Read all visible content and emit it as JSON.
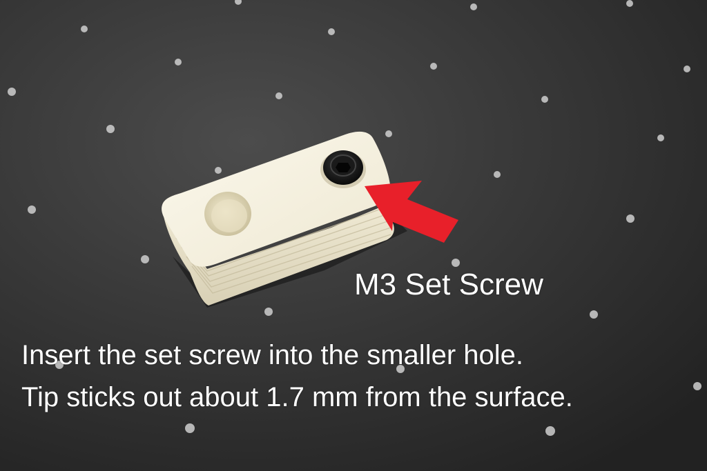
{
  "photo": {
    "subject": "white 3d-printed block with black screw",
    "colors": {
      "mat": "#3a3a3a",
      "mat_dots": "#d9d9d9",
      "block": "#f1ecd8",
      "block_shadow": "#cfc7ad",
      "screw": "#111111",
      "arrow": "#e8202a",
      "text": "#ffffff"
    }
  },
  "callout": {
    "label": "M3 Set Screw"
  },
  "instructions": {
    "line1": "Insert the set screw into the smaller hole.",
    "line2": "Tip sticks out about 1.7 mm from the surface."
  }
}
